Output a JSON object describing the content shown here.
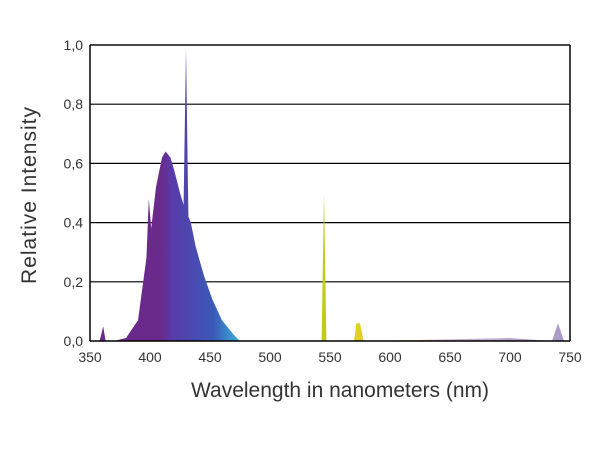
{
  "chart_data": {
    "type": "area",
    "xlabel": "Wavelength in nanometers (nm)",
    "ylabel": "Relative Intensity",
    "xlim": [
      350,
      750
    ],
    "ylim": [
      0,
      1.0
    ],
    "x_ticks": [
      "350",
      "400",
      "450",
      "500",
      "550",
      "600",
      "650",
      "700",
      "750"
    ],
    "y_ticks": [
      "0,0",
      "0,2",
      "0,4",
      "0,6",
      "0,8",
      "1,0"
    ],
    "grid": "horizontal",
    "series": [
      {
        "x": [
          350,
          358,
          361,
          363,
          370,
          380,
          390,
          397,
          399,
          401,
          405,
          410,
          413,
          417,
          420,
          425,
          428,
          430,
          432,
          434,
          438,
          445,
          452,
          460,
          470,
          475,
          540,
          543,
          545,
          547,
          550,
          570,
          572,
          575,
          578,
          580,
          700,
          735,
          740,
          745,
          750
        ],
        "y": [
          0.0,
          0.0,
          0.05,
          0.0,
          0.0,
          0.01,
          0.07,
          0.28,
          0.48,
          0.38,
          0.52,
          0.62,
          0.64,
          0.62,
          0.58,
          0.5,
          0.46,
          0.99,
          0.42,
          0.4,
          0.32,
          0.22,
          0.14,
          0.07,
          0.02,
          0.0,
          0.0,
          0.0,
          0.5,
          0.0,
          0.0,
          0.0,
          0.06,
          0.06,
          0.0,
          0.0,
          0.01,
          0.0,
          0.06,
          0.0,
          0.0
        ]
      }
    ],
    "colors": {
      "violet": "#6a2a8c",
      "purple": "#5a3aa8",
      "blue": "#3a5ab8",
      "cyan": "#3aa8d8",
      "yellow_green": "#b8c818",
      "yellow": "#e0d020",
      "gridline": "#000000"
    }
  }
}
